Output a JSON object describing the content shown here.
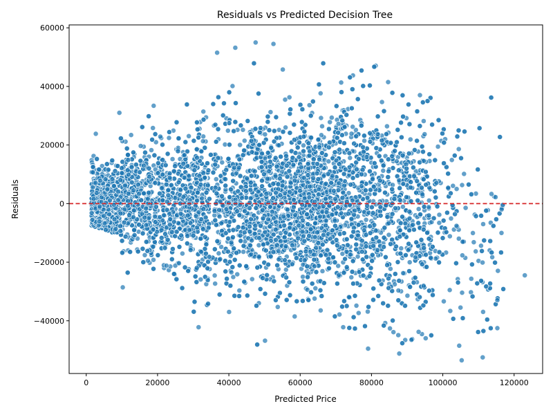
{
  "chart_data": {
    "type": "scatter",
    "title": "Residuals vs Predicted Decision Tree",
    "xlabel": "Predicted Price",
    "ylabel": "Residuals",
    "xlim": [
      -4800,
      128000
    ],
    "ylim": [
      -58000,
      61000
    ],
    "xticks": [
      0,
      20000,
      40000,
      60000,
      80000,
      100000,
      120000
    ],
    "yticks": [
      -40000,
      -20000,
      0,
      20000,
      40000,
      60000
    ],
    "xtick_labels": [
      "0",
      "20000",
      "40000",
      "60000",
      "80000",
      "100000",
      "120000"
    ],
    "ytick_labels": [
      "−40000",
      "−20000",
      "0",
      "20000",
      "40000",
      "60000"
    ],
    "grid": false,
    "legend": "none",
    "reference_line": {
      "y": 0,
      "style": "dashed",
      "color": "#d62728"
    },
    "point_color": "#1f77b4",
    "point_edge_color": "#ffffff",
    "point_alpha": 0.7,
    "approx_point_count": 6000,
    "notable_points": [
      {
        "x": 47500,
        "y": 55000
      },
      {
        "x": 52500,
        "y": 54500
      },
      {
        "x": 41800,
        "y": 53200
      },
      {
        "x": 36700,
        "y": 51500
      },
      {
        "x": 9300,
        "y": 31000
      },
      {
        "x": 123000,
        "y": -24500
      },
      {
        "x": 116500,
        "y": -2000
      },
      {
        "x": 114800,
        "y": 2200
      },
      {
        "x": 115300,
        "y": -42500
      },
      {
        "x": 115300,
        "y": -33000
      },
      {
        "x": 111200,
        "y": -52500
      },
      {
        "x": 105300,
        "y": -53500
      },
      {
        "x": 87800,
        "y": -51200
      },
      {
        "x": 104600,
        "y": -48500
      },
      {
        "x": 91200,
        "y": -46500
      }
    ]
  }
}
